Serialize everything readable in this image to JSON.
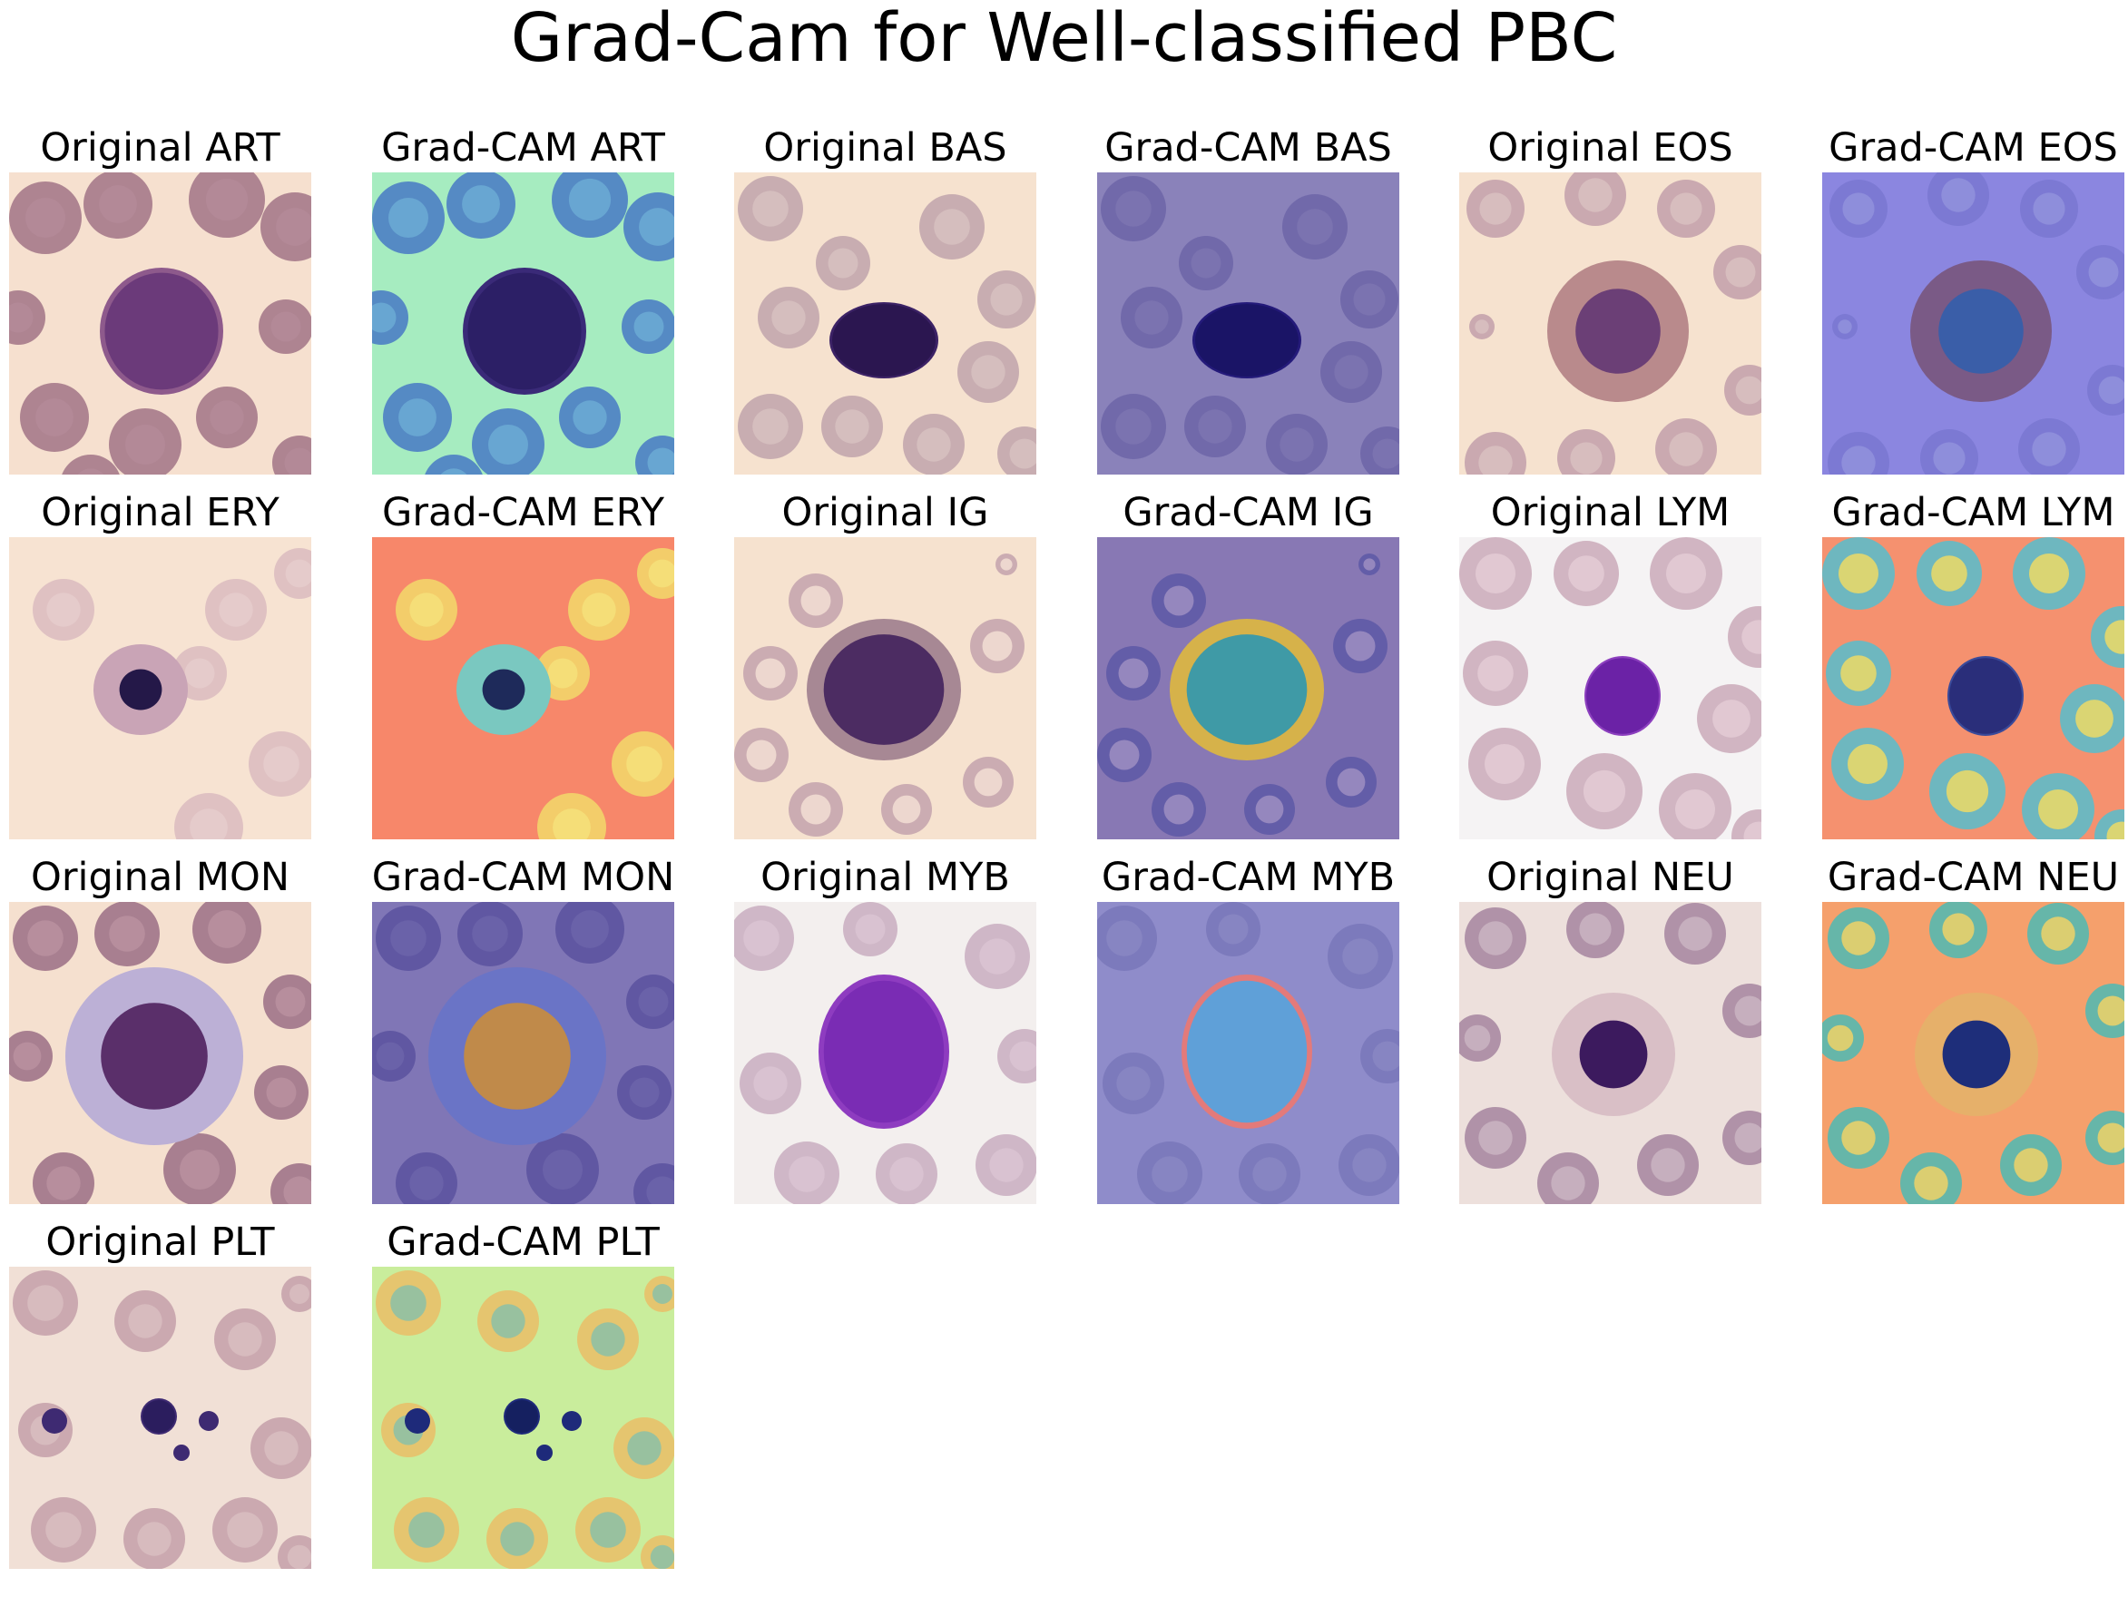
{
  "figure": {
    "title": "Grad-Cam for Well-classified PBC"
  },
  "panels": [
    {
      "title": "Original ART",
      "kind": "original",
      "scheme": "art"
    },
    {
      "title": "Grad-CAM ART",
      "kind": "gradcam",
      "scheme": "art"
    },
    {
      "title": "Original BAS",
      "kind": "original",
      "scheme": "bas"
    },
    {
      "title": "Grad-CAM BAS",
      "kind": "gradcam",
      "scheme": "bas"
    },
    {
      "title": "Original EOS",
      "kind": "original",
      "scheme": "eos"
    },
    {
      "title": "Grad-CAM EOS",
      "kind": "gradcam",
      "scheme": "eos"
    },
    {
      "title": "Original ERY",
      "kind": "original",
      "scheme": "ery"
    },
    {
      "title": "Grad-CAM ERY",
      "kind": "gradcam",
      "scheme": "ery"
    },
    {
      "title": "Original IG",
      "kind": "original",
      "scheme": "ig"
    },
    {
      "title": "Grad-CAM IG",
      "kind": "gradcam",
      "scheme": "ig"
    },
    {
      "title": "Original LYM",
      "kind": "original",
      "scheme": "lym"
    },
    {
      "title": "Grad-CAM LYM",
      "kind": "gradcam",
      "scheme": "lym"
    },
    {
      "title": "Original MON",
      "kind": "original",
      "scheme": "mon"
    },
    {
      "title": "Grad-CAM MON",
      "kind": "gradcam",
      "scheme": "mon"
    },
    {
      "title": "Original MYB",
      "kind": "original",
      "scheme": "myb"
    },
    {
      "title": "Grad-CAM MYB",
      "kind": "gradcam",
      "scheme": "myb"
    },
    {
      "title": "Original NEU",
      "kind": "original",
      "scheme": "neu"
    },
    {
      "title": "Grad-CAM NEU",
      "kind": "gradcam",
      "scheme": "neu"
    },
    {
      "title": "Original PLT",
      "kind": "original",
      "scheme": "plt"
    },
    {
      "title": "Grad-CAM PLT",
      "kind": "gradcam",
      "scheme": "plt"
    }
  ],
  "colors": {
    "original_background": "#f6e0cf",
    "original_cell": "#9d6c86",
    "original_nucleus": "#4a2470",
    "gradcam_art_background": "#a6ecc0",
    "gradcam_ery_background": "#f7876a",
    "gradcam_lym_background": "#f5916f",
    "gradcam_neu_background": "#f5a06c",
    "gradcam_plt_background": "#c9ed9c",
    "gradcam_low_background": "#8a82ba"
  }
}
